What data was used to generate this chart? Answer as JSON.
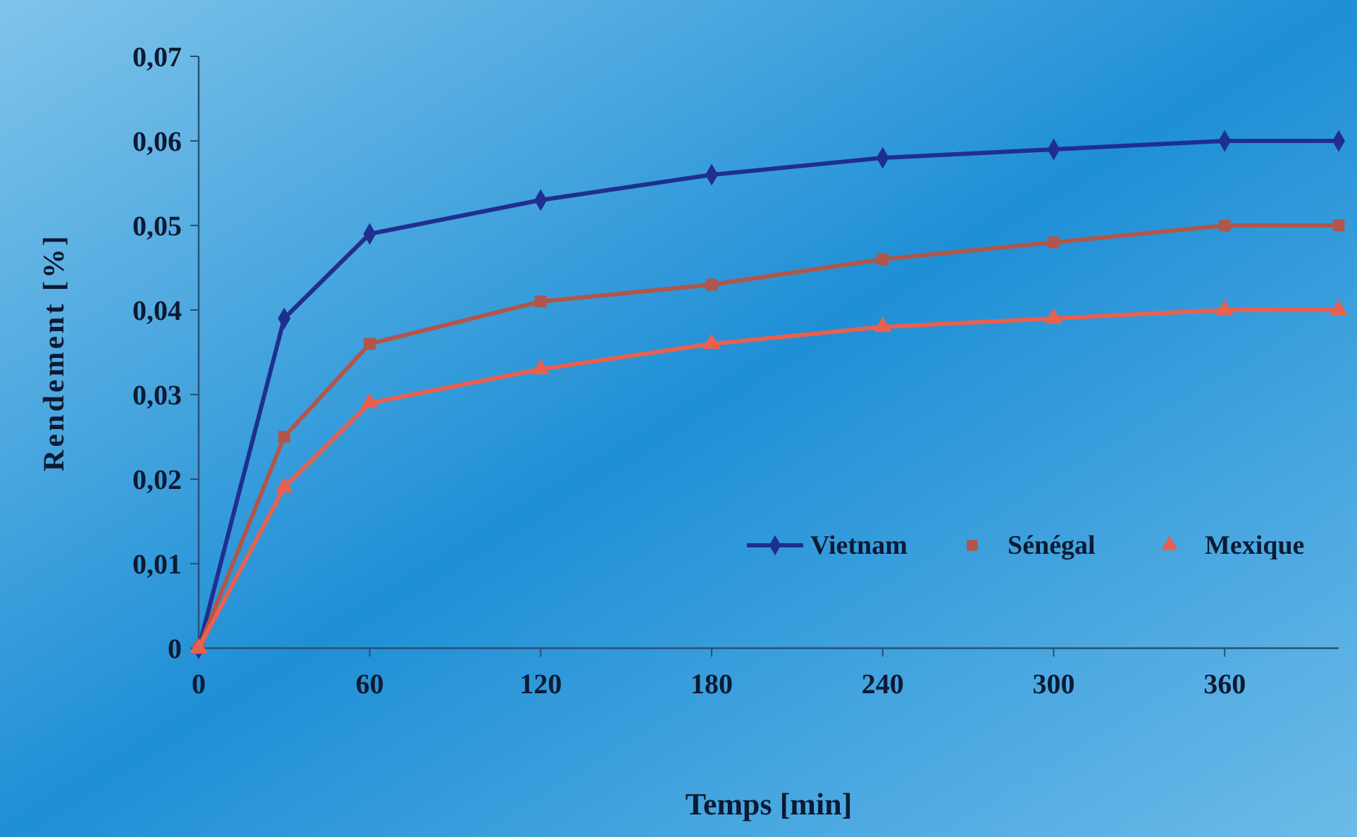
{
  "chart_data": {
    "type": "line",
    "xlabel": "Temps [min]",
    "ylabel": "Rendement [%]",
    "x": [
      0,
      30,
      60,
      120,
      180,
      240,
      300,
      360,
      400
    ],
    "xlim": [
      0,
      400
    ],
    "xticks": [
      0,
      60,
      120,
      180,
      240,
      300,
      360
    ],
    "ylim": [
      0,
      0.07
    ],
    "yticks": [
      0,
      {
        "value": 0.01,
        "label": "0,01"
      },
      {
        "value": 0.02,
        "label": "0,02"
      },
      {
        "value": 0.03,
        "label": "0,03"
      },
      {
        "value": 0.04,
        "label": "0,04"
      },
      {
        "value": 0.05,
        "label": "0,05"
      },
      {
        "value": 0.06,
        "label": "0,06"
      },
      {
        "value": 0.07,
        "label": "0,07"
      }
    ],
    "grid": false,
    "legend": "bottom right",
    "line_style": "solid",
    "series": [
      {
        "name": "Vietnam",
        "color": "#1f2f8f",
        "marker": "diamond",
        "values": [
          0,
          0.039,
          0.049,
          0.053,
          0.056,
          0.058,
          0.059,
          0.06,
          0.06
        ]
      },
      {
        "name": "Sénégal",
        "color": "#b0564a",
        "marker": "square",
        "values": [
          0,
          0.025,
          0.036,
          0.041,
          0.043,
          0.046,
          0.048,
          0.05,
          0.05
        ]
      },
      {
        "name": "Mexique",
        "color": "#e8604f",
        "marker": "triangle",
        "values": [
          0,
          0.019,
          0.029,
          0.033,
          0.036,
          0.038,
          0.039,
          0.04,
          0.04
        ]
      }
    ]
  }
}
